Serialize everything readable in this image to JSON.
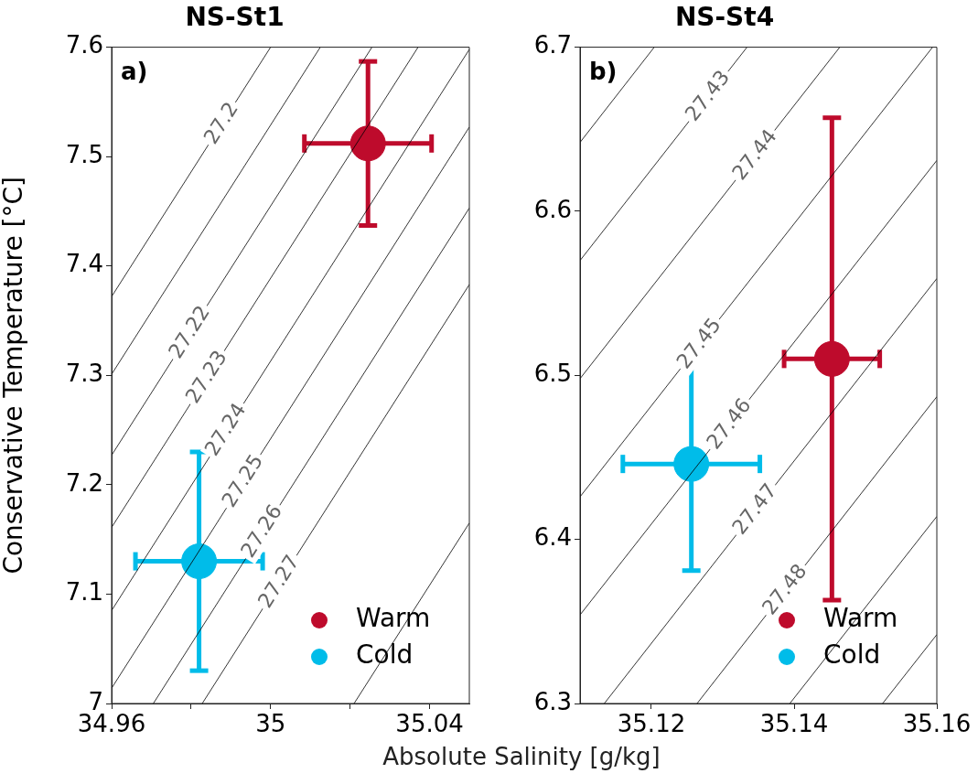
{
  "chart_data": [
    {
      "type": "scatter",
      "title": "NS-St1",
      "xlabel": "Absolute Salinity [g/kg]",
      "ylabel": "Conservative Temperature [°C]",
      "xlim": [
        34.96,
        35.05
      ],
      "xticks": [
        34.96,
        {
          "value": 34.98,
          "label": null
        },
        35,
        {
          "value": 35.02,
          "label": null
        },
        35.04
      ],
      "ylim": [
        7,
        7.6
      ],
      "yticks": [
        7,
        7.1,
        7.2,
        7.3,
        7.4,
        7.5,
        7.6
      ],
      "legend": "bottom right",
      "marker": "circle",
      "annotations": [
        "a)",
        {
          "text": "27.2",
          "x": 34.9878,
          "y": 7.53
        },
        {
          "text": "27.22",
          "x": 34.9798,
          "y": 7.339
        },
        {
          "text": "27.23",
          "x": 34.9841,
          "y": 7.298
        },
        {
          "text": "27.24",
          "x": 34.9889,
          "y": 7.25
        },
        {
          "text": "27.25",
          "x": 34.9932,
          "y": 7.203
        },
        {
          "text": "27.26",
          "x": 34.998,
          "y": 7.157
        },
        {
          "text": "27.27",
          "x": 35.0023,
          "y": 7.111
        }
      ],
      "series": [
        {
          "type": "line",
          "marker": "none",
          "color": "#000000",
          "x": [
            34.96,
            35.0
          ],
          "values": [
            7.372,
            7.6
          ]
        },
        {
          "type": "line",
          "marker": "none",
          "color": "#000000",
          "x": [
            34.96,
            35.0125
          ],
          "values": [
            7.301,
            7.6
          ]
        },
        {
          "type": "line",
          "marker": "none",
          "color": "#000000",
          "x": [
            34.96,
            35.0255
          ],
          "values": [
            7.227,
            7.6
          ]
        },
        {
          "type": "line",
          "marker": "none",
          "color": "#000000",
          "x": [
            34.96,
            35.0371
          ],
          "values": [
            7.161,
            7.6
          ]
        },
        {
          "type": "line",
          "marker": "none",
          "color": "#000000",
          "x": [
            34.96,
            35.05
          ],
          "values": [
            7.085,
            7.598
          ]
        },
        {
          "type": "line",
          "marker": "none",
          "color": "#000000",
          "x": [
            34.96,
            35.05
          ],
          "values": [
            7.014,
            7.527
          ]
        },
        {
          "type": "line",
          "marker": "none",
          "color": "#000000",
          "x": [
            34.9705,
            35.05
          ],
          "values": [
            7,
            7.453
          ]
        },
        {
          "type": "line",
          "marker": "none",
          "color": "#000000",
          "x": [
            34.9828,
            35.05
          ],
          "values": [
            7,
            7.383
          ]
        },
        {
          "type": "line",
          "marker": "none",
          "color": "#000000",
          "x": [
            35.021,
            35.05
          ],
          "values": [
            7,
            7.165
          ]
        },
        {
          "name": "Warm",
          "color": "#be0b2c",
          "x": [
            35.0245
          ],
          "values": [
            7.512
          ],
          "errors": [
            0.075
          ],
          "xerrors": [
            0.016
          ]
        },
        {
          "name": "Cold",
          "color": "#00bce9",
          "x": [
            34.982
          ],
          "values": [
            7.13
          ],
          "errors": [
            0.1
          ],
          "xerrors": [
            0.016
          ]
        }
      ]
    },
    {
      "type": "scatter",
      "title": "NS-St4",
      "xlim": [
        35.11,
        35.16
      ],
      "xticks": [
        35.12,
        35.14,
        35.16
      ],
      "ylim": [
        6.3,
        6.7
      ],
      "yticks": [
        6.3,
        6.4,
        6.5,
        6.6,
        6.7
      ],
      "legend": "bottom right",
      "marker": "circle",
      "annotations": [
        "b)",
        {
          "text": "27.43",
          "x": 35.128,
          "y": 6.67
        },
        {
          "text": "27.44",
          "x": 35.1346,
          "y": 6.634
        },
        {
          "text": "27.45",
          "x": 35.1268,
          "y": 6.519
        },
        {
          "text": "27.46",
          "x": 35.131,
          "y": 6.47
        },
        {
          "text": "27.47",
          "x": 35.1346,
          "y": 6.418
        },
        {
          "text": "27.48",
          "x": 35.1388,
          "y": 6.369
        }
      ],
      "series": [
        {
          "type": "line",
          "marker": "none",
          "color": "#000000",
          "x": [
            35.11,
            35.1204
          ],
          "values": [
            6.642,
            6.7
          ]
        },
        {
          "type": "line",
          "marker": "none",
          "color": "#000000",
          "x": [
            35.11,
            35.1334
          ],
          "values": [
            6.57,
            6.7
          ]
        },
        {
          "type": "line",
          "marker": "none",
          "color": "#000000",
          "x": [
            35.11,
            35.1464
          ],
          "values": [
            6.498,
            6.7
          ]
        },
        {
          "type": "line",
          "marker": "none",
          "color": "#000000",
          "x": [
            35.11,
            35.1594
          ],
          "values": [
            6.426,
            6.7
          ]
        },
        {
          "type": "line",
          "marker": "none",
          "color": "#000000",
          "x": [
            35.11,
            35.16
          ],
          "values": [
            6.354,
            6.631
          ]
        },
        {
          "type": "line",
          "marker": "none",
          "color": "#000000",
          "x": [
            35.1134,
            35.16
          ],
          "values": [
            6.3,
            6.559
          ]
        },
        {
          "type": "line",
          "marker": "none",
          "color": "#000000",
          "x": [
            35.1264,
            35.16
          ],
          "values": [
            6.3,
            6.487
          ]
        },
        {
          "type": "line",
          "marker": "none",
          "color": "#000000",
          "x": [
            35.1394,
            35.16
          ],
          "values": [
            6.3,
            6.414
          ]
        },
        {
          "type": "line",
          "marker": "none",
          "color": "#000000",
          "x": [
            35.1524,
            35.16
          ],
          "values": [
            6.3,
            6.342
          ]
        },
        {
          "name": "Warm",
          "color": "#be0b2c",
          "x": [
            35.1453
          ],
          "values": [
            6.51
          ],
          "errors": [
            0.147
          ],
          "xerrors": [
            0.0067
          ]
        },
        {
          "name": "Cold",
          "color": "#00bce9",
          "x": [
            35.1256
          ],
          "values": [
            6.446
          ],
          "errors": [
            0.065
          ],
          "xerrors": [
            0.0096
          ]
        }
      ]
    }
  ]
}
